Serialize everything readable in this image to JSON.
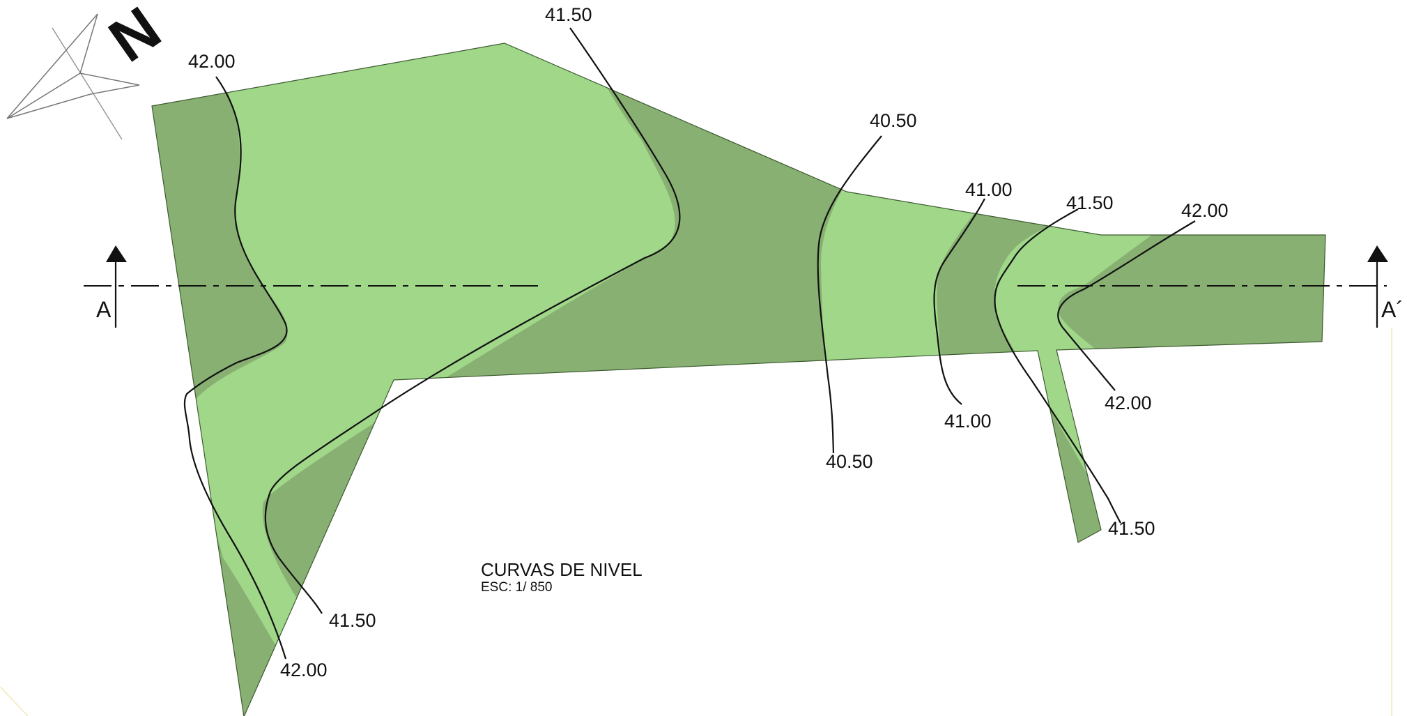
{
  "colors": {
    "band_dark": "#88b072",
    "band_light": "#a0d789",
    "line": "#111111"
  },
  "north_arrow": {
    "letter": "N"
  },
  "section": {
    "left": "A",
    "right": "A´"
  },
  "title": {
    "main": "CURVAS DE NIVEL",
    "scale": "ESC: 1/ 850"
  },
  "contour_labels": [
    "42.00",
    "41.50",
    "40.50",
    "41.00",
    "41.50",
    "42.00",
    "42.00",
    "41.00",
    "40.50",
    "41.50",
    "41.50",
    "42.00"
  ]
}
